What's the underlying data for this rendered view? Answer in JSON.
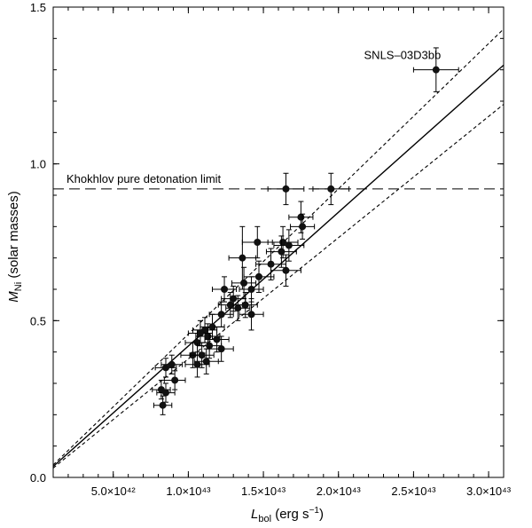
{
  "chart_data": {
    "type": "scatter",
    "xlabel": {
      "main": "L",
      "sub": "bol",
      "unit": " (erg s",
      "sup": "−1",
      "close": ")"
    },
    "ylabel": {
      "main": "M",
      "sub": "Ni",
      "unit": " (solar masses)"
    },
    "xlim": [
      1e+42,
      3.1e+43
    ],
    "ylim": [
      0.0,
      1.5
    ],
    "x_ticks": [
      {
        "value": 5e+42,
        "label": "5.0×10⁴²"
      },
      {
        "value": 1e+43,
        "label": "1.0×10⁴³"
      },
      {
        "value": 1.5e+43,
        "label": "1.5×10⁴³"
      },
      {
        "value": 2e+43,
        "label": "2.0×10⁴³"
      },
      {
        "value": 2.5e+43,
        "label": "2.5×10⁴³"
      },
      {
        "value": 3e+43,
        "label": "3.0×10⁴³"
      }
    ],
    "y_ticks": [
      {
        "value": 0.0,
        "label": "0.0"
      },
      {
        "value": 0.5,
        "label": "0.5"
      },
      {
        "value": 1.0,
        "label": "1.0"
      },
      {
        "value": 1.5,
        "label": "1.5"
      }
    ],
    "x_minor_step": 1e+42,
    "y_minor_step": 0.1,
    "grid": false,
    "points": [
      {
        "x": 2.65e+43,
        "y": 1.3,
        "xerr": 1.5e+42,
        "yerr": 0.07
      },
      {
        "x": 1.95e+43,
        "y": 0.92,
        "xerr": 1.2e+42,
        "yerr": 0.05
      },
      {
        "x": 1.65e+43,
        "y": 0.92,
        "xerr": 1.2e+42,
        "yerr": 0.05
      },
      {
        "x": 1.75e+43,
        "y": 0.83,
        "xerr": 8e+41,
        "yerr": 0.05
      },
      {
        "x": 1.76e+43,
        "y": 0.8,
        "xerr": 8e+41,
        "yerr": 0.04
      },
      {
        "x": 1.63e+43,
        "y": 0.75,
        "xerr": 1e+42,
        "yerr": 0.05
      },
      {
        "x": 1.67e+43,
        "y": 0.74,
        "xerr": 1e+42,
        "yerr": 0.05
      },
      {
        "x": 1.46e+43,
        "y": 0.75,
        "xerr": 1e+42,
        "yerr": 0.05
      },
      {
        "x": 1.62e+43,
        "y": 0.72,
        "xerr": 1e+42,
        "yerr": 0.05
      },
      {
        "x": 1.36e+43,
        "y": 0.7,
        "xerr": 9e+41,
        "yerr": 0.1
      },
      {
        "x": 1.55e+43,
        "y": 0.68,
        "xerr": 1e+42,
        "yerr": 0.05
      },
      {
        "x": 1.65e+43,
        "y": 0.66,
        "xerr": 1e+42,
        "yerr": 0.05
      },
      {
        "x": 1.47e+43,
        "y": 0.64,
        "xerr": 1e+42,
        "yerr": 0.05
      },
      {
        "x": 1.37e+43,
        "y": 0.62,
        "xerr": 8e+41,
        "yerr": 0.05
      },
      {
        "x": 1.42e+43,
        "y": 0.6,
        "xerr": 8e+41,
        "yerr": 0.04
      },
      {
        "x": 1.24e+43,
        "y": 0.6,
        "xerr": 8e+41,
        "yerr": 0.04
      },
      {
        "x": 1.3e+43,
        "y": 0.57,
        "xerr": 8e+41,
        "yerr": 0.04
      },
      {
        "x": 1.28e+43,
        "y": 0.55,
        "xerr": 8e+41,
        "yerr": 0.04
      },
      {
        "x": 1.38e+43,
        "y": 0.55,
        "xerr": 8e+41,
        "yerr": 0.04
      },
      {
        "x": 1.33e+43,
        "y": 0.54,
        "xerr": 8e+41,
        "yerr": 0.04
      },
      {
        "x": 1.42e+43,
        "y": 0.52,
        "xerr": 8e+41,
        "yerr": 0.05
      },
      {
        "x": 1.22e+43,
        "y": 0.52,
        "xerr": 8e+41,
        "yerr": 0.04
      },
      {
        "x": 1.16e+43,
        "y": 0.48,
        "xerr": 8e+41,
        "yerr": 0.04
      },
      {
        "x": 1.11e+43,
        "y": 0.47,
        "xerr": 8e+41,
        "yerr": 0.04
      },
      {
        "x": 1.08e+43,
        "y": 0.46,
        "xerr": 8e+41,
        "yerr": 0.04
      },
      {
        "x": 1.13e+43,
        "y": 0.45,
        "xerr": 8e+41,
        "yerr": 0.04
      },
      {
        "x": 1.19e+43,
        "y": 0.44,
        "xerr": 8e+41,
        "yerr": 0.04
      },
      {
        "x": 1.06e+43,
        "y": 0.43,
        "xerr": 8e+41,
        "yerr": 0.04
      },
      {
        "x": 1.14e+43,
        "y": 0.42,
        "xerr": 8e+41,
        "yerr": 0.04
      },
      {
        "x": 1.22e+43,
        "y": 0.41,
        "xerr": 8e+41,
        "yerr": 0.04
      },
      {
        "x": 1.03e+43,
        "y": 0.39,
        "xerr": 8e+41,
        "yerr": 0.04
      },
      {
        "x": 1.09e+43,
        "y": 0.39,
        "xerr": 8e+41,
        "yerr": 0.04
      },
      {
        "x": 1.12e+43,
        "y": 0.37,
        "xerr": 8e+41,
        "yerr": 0.04
      },
      {
        "x": 1.06e+43,
        "y": 0.36,
        "xerr": 8e+41,
        "yerr": 0.04
      },
      {
        "x": 8.9e+42,
        "y": 0.36,
        "xerr": 7e+41,
        "yerr": 0.03
      },
      {
        "x": 8.5e+42,
        "y": 0.35,
        "xerr": 7e+41,
        "yerr": 0.03
      },
      {
        "x": 9.1e+42,
        "y": 0.31,
        "xerr": 7e+41,
        "yerr": 0.03
      },
      {
        "x": 8.2e+42,
        "y": 0.28,
        "xerr": 6e+41,
        "yerr": 0.03
      },
      {
        "x": 8.5e+42,
        "y": 0.27,
        "xerr": 6e+41,
        "yerr": 0.03
      },
      {
        "x": 8.3e+42,
        "y": 0.23,
        "xerr": 6e+41,
        "yerr": 0.03
      }
    ],
    "lines": [
      {
        "style": "solid",
        "from": [
          1e+42,
          0.035
        ],
        "to": [
          3.1e+43,
          1.315
        ]
      },
      {
        "style": "dotted",
        "from": [
          1e+42,
          0.04
        ],
        "to": [
          3.1e+43,
          1.43
        ]
      },
      {
        "style": "dotted",
        "from": [
          1e+42,
          0.03
        ],
        "to": [
          3.1e+43,
          1.19
        ]
      }
    ],
    "hline": {
      "y": 0.92,
      "style": "dashed",
      "label": "Khokhlov pure detonation limit"
    },
    "annotations": [
      {
        "text": "SNLS–03D3bb",
        "x": 2.17e+43,
        "y": 1.335
      }
    ]
  }
}
